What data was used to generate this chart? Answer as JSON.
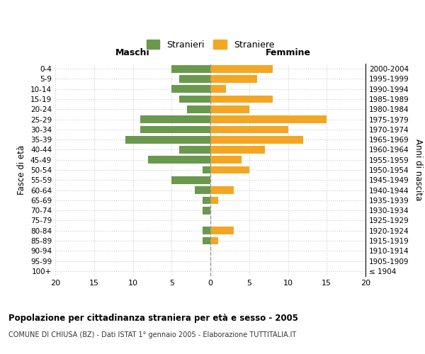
{
  "age_groups": [
    "100+",
    "95-99",
    "90-94",
    "85-89",
    "80-84",
    "75-79",
    "70-74",
    "65-69",
    "60-64",
    "55-59",
    "50-54",
    "45-49",
    "40-44",
    "35-39",
    "30-34",
    "25-29",
    "20-24",
    "15-19",
    "10-14",
    "5-9",
    "0-4"
  ],
  "birth_years": [
    "≤ 1904",
    "1905-1909",
    "1910-1914",
    "1915-1919",
    "1920-1924",
    "1925-1929",
    "1930-1934",
    "1935-1939",
    "1940-1944",
    "1945-1949",
    "1950-1954",
    "1955-1959",
    "1960-1964",
    "1965-1969",
    "1970-1974",
    "1975-1979",
    "1980-1984",
    "1985-1989",
    "1990-1994",
    "1995-1999",
    "2000-2004"
  ],
  "maschi": [
    0,
    0,
    0,
    1,
    1,
    0,
    1,
    1,
    2,
    5,
    1,
    8,
    4,
    11,
    9,
    9,
    3,
    4,
    5,
    4,
    5
  ],
  "femmine": [
    0,
    0,
    0,
    1,
    3,
    0,
    0,
    1,
    3,
    0,
    5,
    4,
    7,
    12,
    10,
    15,
    5,
    8,
    2,
    6,
    8
  ],
  "color_maschi": "#6a994e",
  "color_femmine": "#f4a623",
  "bar_height": 0.75,
  "xlim": 20,
  "title": "Popolazione per cittadinanza straniera per età e sesso - 2005",
  "subtitle": "COMUNE DI CHIUSA (BZ) - Dati ISTAT 1° gennaio 2005 - Elaborazione TUTTITALIA.IT",
  "ylabel_left": "Fasce di età",
  "ylabel_right": "Anni di nascita",
  "legend_maschi": "Stranieri",
  "legend_femmine": "Straniere",
  "header_maschi": "Maschi",
  "header_femmine": "Femmine",
  "background_color": "#ffffff",
  "grid_color": "#cccccc"
}
